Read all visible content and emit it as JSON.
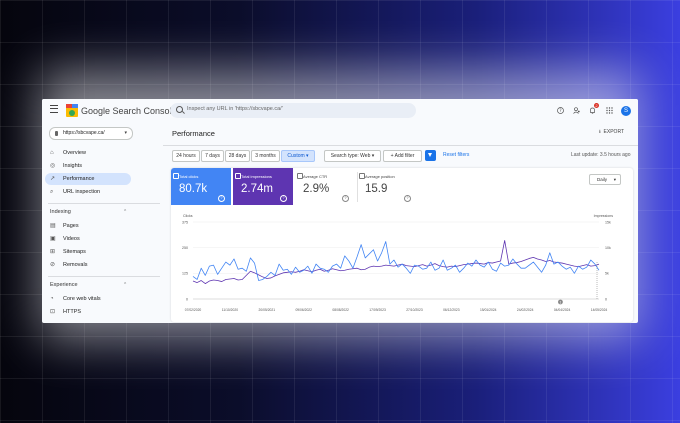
{
  "app": {
    "brand": "Google Search Console"
  },
  "search": {
    "placeholder": "Inspect any URL in 'https://sbcvape.ca/'"
  },
  "topbar": {
    "notification_count": "2",
    "avatar_letter": "S"
  },
  "property": {
    "label": "https://sbcvape.ca/"
  },
  "sidebar": {
    "items": [
      {
        "label": "Overview"
      },
      {
        "label": "Insights"
      },
      {
        "label": "Performance"
      },
      {
        "label": "URL inspection"
      }
    ],
    "indexing": {
      "title": "Indexing",
      "items": [
        {
          "label": "Pages"
        },
        {
          "label": "Videos"
        },
        {
          "label": "Sitemaps"
        },
        {
          "label": "Removals"
        }
      ]
    },
    "experience": {
      "title": "Experience",
      "items": [
        {
          "label": "Core web vitals"
        },
        {
          "label": "HTTPS"
        }
      ]
    }
  },
  "page": {
    "title": "Performance",
    "export_label": "EXPORT"
  },
  "filters": {
    "ranges": [
      {
        "label": "24 hours"
      },
      {
        "label": "7 days"
      },
      {
        "label": "28 days"
      },
      {
        "label": "3 months"
      },
      {
        "label": "Custom ▾"
      }
    ],
    "search_type": "Search type: Web ▾",
    "add_filter": "+ Add filter",
    "reset": "Reset filters",
    "last_update": "Last update: 3.5 hours ago"
  },
  "metrics": [
    {
      "label": "Total clicks",
      "value": "80.7k"
    },
    {
      "label": "Total impressions",
      "value": "2.74m"
    },
    {
      "label": "Average CTR",
      "value": "2.9%"
    },
    {
      "label": "Average position",
      "value": "15.9"
    }
  ],
  "granularity": {
    "label": "Daily",
    "chevron": "▾"
  },
  "colors": {
    "clicks": "#4285f4",
    "impressions": "#5e35b1",
    "accent": "#1a73e8"
  },
  "chart_data": {
    "type": "line",
    "y_left": {
      "label": "Clicks",
      "ticks": [
        "375",
        "250",
        "125",
        "0"
      ],
      "ylim": [
        0,
        375
      ]
    },
    "y_right": {
      "label": "Impressions",
      "ticks": [
        "15k",
        "10k",
        "5k",
        "0"
      ],
      "ylim": [
        0,
        15000
      ]
    },
    "x_ticks": [
      "07/02/2020",
      "11/10/2020",
      "20/05/2021",
      "09/06/2022",
      "08/08/2022",
      "17/09/2023",
      "27/10/2023",
      "06/12/2023",
      "15/01/2024",
      "24/02/2024",
      "04/04/2024",
      "14/05/2024"
    ],
    "annotation": "1",
    "series": [
      {
        "values": [
          110,
          95,
          150,
          115,
          160,
          165,
          120,
          150,
          180,
          165,
          195,
          145,
          150,
          135,
          200,
          175,
          90,
          95,
          110,
          130,
          115,
          170,
          140,
          145,
          120,
          155,
          130,
          140,
          160,
          125,
          170,
          150,
          145,
          130,
          160,
          170,
          150,
          210,
          185,
          150,
          205,
          265,
          200,
          220,
          240,
          185,
          225,
          280,
          170,
          190,
          155,
          170,
          150,
          125,
          165,
          160,
          145,
          150,
          180,
          140,
          150,
          190,
          140,
          150,
          165,
          130,
          150,
          175,
          160,
          190,
          165,
          155,
          180,
          145,
          135,
          175,
          160,
          165,
          195,
          170,
          150,
          150,
          165,
          180,
          155,
          130,
          165,
          225,
          170,
          180,
          160,
          145,
          155,
          125,
          160,
          145,
          155,
          190,
          170,
          140
        ]
      },
      {
        "values": [
          3500,
          3200,
          3600,
          3000,
          3500,
          3700,
          3600,
          3400,
          3800,
          3900,
          4000,
          3700,
          3800,
          4600,
          5400,
          5100,
          4700,
          4300,
          4000,
          4100,
          4500,
          4800,
          5100,
          5200,
          5300,
          5200,
          5400,
          5700,
          5500,
          5300,
          5600,
          5800,
          5400,
          5600,
          5900,
          5700,
          5500,
          5600,
          5800,
          5900,
          6000,
          5700,
          5800,
          6200,
          6400,
          6300,
          6400,
          6600,
          6500,
          6400,
          6600,
          6800,
          6500,
          6400,
          6300,
          6500,
          6700,
          6400,
          6600,
          6900,
          6500,
          6300,
          6200,
          6400,
          6300,
          6500,
          6700,
          6800,
          6900,
          7000,
          6900,
          6800,
          7100,
          7000,
          7200,
          7400,
          11400,
          6800,
          7000,
          7100,
          7300,
          7600,
          7900,
          8100,
          7800,
          7600,
          7300,
          7500,
          7200,
          7100,
          7000,
          6800,
          6600,
          6400,
          6300,
          6500,
          6700,
          6400,
          6500,
          6800
        ]
      }
    ]
  }
}
